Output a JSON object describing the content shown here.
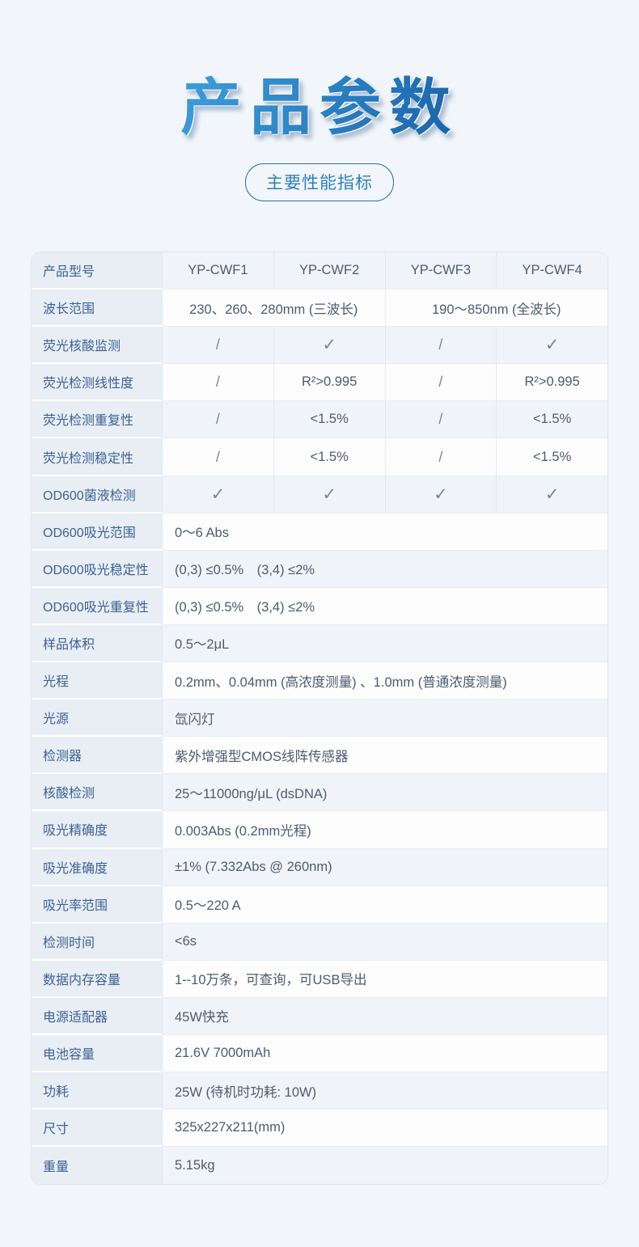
{
  "page": {
    "title": "产品参数",
    "badge_label": "主要性能指标"
  },
  "colors": {
    "page_bg": "#f2f6fa",
    "title_blue_light": "#3b9bd8",
    "title_blue_dark": "#1b66ac",
    "badge_blue": "#2d7fc0",
    "badge_border": "#2c6fae",
    "label_bg": "#e9eef5",
    "label_text": "#3b6293",
    "value_text": "#4e5b6e",
    "mark_gray": "#7b8594",
    "table_border": "#dfe5ec",
    "grid_line": "#e3e8ef"
  },
  "glyphs": {
    "check": "✓",
    "slash": "/"
  },
  "table": {
    "rows": [
      {
        "label": "产品型号",
        "cells": [
          {
            "text": "YP-CWF1"
          },
          {
            "text": "YP-CWF2"
          },
          {
            "text": "YP-CWF3"
          },
          {
            "text": "YP-CWF4"
          }
        ]
      },
      {
        "label": "波长范围",
        "cells": [
          {
            "text": "230、260、280mm (三波长)",
            "span": 2
          },
          {
            "text": "190～850nm (全波长)",
            "span": 2
          }
        ]
      },
      {
        "label": "荧光核酸监测",
        "cells": [
          {
            "mark": "slash"
          },
          {
            "mark": "check"
          },
          {
            "mark": "slash"
          },
          {
            "mark": "check"
          }
        ]
      },
      {
        "label": "荧光检测线性度",
        "cells": [
          {
            "mark": "slash"
          },
          {
            "text": "R²>0.995"
          },
          {
            "mark": "slash"
          },
          {
            "text": "R²>0.995"
          }
        ]
      },
      {
        "label": "荧光检测重复性",
        "cells": [
          {
            "mark": "slash"
          },
          {
            "text": "<1.5%"
          },
          {
            "mark": "slash"
          },
          {
            "text": "<1.5%"
          }
        ]
      },
      {
        "label": "荧光检测稳定性",
        "cells": [
          {
            "mark": "slash"
          },
          {
            "text": "<1.5%"
          },
          {
            "mark": "slash"
          },
          {
            "text": "<1.5%"
          }
        ]
      },
      {
        "label": "OD600菌液检测",
        "cells": [
          {
            "mark": "check"
          },
          {
            "mark": "check"
          },
          {
            "mark": "check"
          },
          {
            "mark": "check"
          }
        ]
      },
      {
        "label": "OD600吸光范围",
        "cells": [
          {
            "text": "0～6 Abs",
            "span": 4
          }
        ]
      },
      {
        "label": "OD600吸光稳定性",
        "cells": [
          {
            "text": "(0,3) ≤0.5%　(3,4) ≤2%",
            "span": 4
          }
        ]
      },
      {
        "label": "OD600吸光重复性",
        "cells": [
          {
            "text": "(0,3) ≤0.5%　(3,4) ≤2%",
            "span": 4
          }
        ]
      },
      {
        "label": "样品体积",
        "cells": [
          {
            "text": "0.5～2μL",
            "span": 4
          }
        ]
      },
      {
        "label": "光程",
        "cells": [
          {
            "text": "0.2mm、0.04mm (高浓度测量) 、1.0mm (普通浓度测量)",
            "span": 4
          }
        ]
      },
      {
        "label": "光源",
        "cells": [
          {
            "text": "氙闪灯",
            "span": 4
          }
        ]
      },
      {
        "label": "检测器",
        "cells": [
          {
            "text": "紫外增强型CMOS线阵传感器",
            "span": 4
          }
        ]
      },
      {
        "label": "核酸检测",
        "cells": [
          {
            "text": "25～11000ng/μL (dsDNA)",
            "span": 4
          }
        ]
      },
      {
        "label": "吸光精确度",
        "cells": [
          {
            "text": "0.003Abs (0.2mm光程)",
            "span": 4
          }
        ]
      },
      {
        "label": "吸光准确度",
        "cells": [
          {
            "text": "±1% (7.332Abs @ 260nm)",
            "span": 4
          }
        ]
      },
      {
        "label": "吸光率范围",
        "cells": [
          {
            "text": "0.5～220 A",
            "span": 4
          }
        ]
      },
      {
        "label": "检测时间",
        "cells": [
          {
            "text": "<6s",
            "span": 4
          }
        ]
      },
      {
        "label": "数据内存容量",
        "cells": [
          {
            "text": "1--10万条，可查询，可USB导出",
            "span": 4
          }
        ]
      },
      {
        "label": "电源适配器",
        "cells": [
          {
            "text": "45W快充",
            "span": 4
          }
        ]
      },
      {
        "label": "电池容量",
        "cells": [
          {
            "text": "21.6V 7000mAh",
            "span": 4
          }
        ]
      },
      {
        "label": "功耗",
        "cells": [
          {
            "text": "25W (待机时功耗: 10W)",
            "span": 4
          }
        ]
      },
      {
        "label": "尺寸",
        "cells": [
          {
            "text": "325x227x211(mm)",
            "span": 4
          }
        ]
      },
      {
        "label": "重量",
        "cells": [
          {
            "text": "5.15kg",
            "span": 4
          }
        ]
      }
    ]
  }
}
